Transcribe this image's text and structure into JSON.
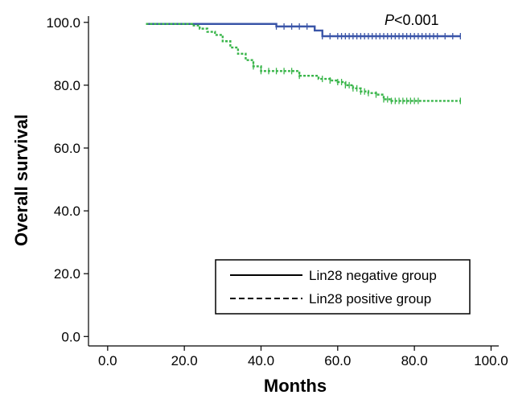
{
  "chart_data": {
    "type": "line",
    "xlabel": "Months",
    "ylabel": "Overall survival",
    "xlim": [
      -5,
      102
    ],
    "ylim": [
      -3,
      102
    ],
    "x_ticks": [
      "0.0",
      "20.0",
      "40.0",
      "60.0",
      "80.0",
      "100.0"
    ],
    "y_ticks": [
      "0.0",
      "20.0",
      "40.0",
      "60.0",
      "80.0",
      "100.0"
    ],
    "annotation": {
      "italic": "P",
      "rest": "<0.001"
    },
    "legend_position": "bottom-right",
    "series": [
      {
        "name": "Lin28 negative group",
        "color": "#3a55a8",
        "style": "solid",
        "x": [
          10,
          43,
          44,
          52,
          54,
          56,
          92
        ],
        "y": [
          99.5,
          99.5,
          98.7,
          98.7,
          97.4,
          95.6,
          95.6
        ],
        "censor_x": [
          44,
          46,
          48,
          50,
          52,
          56,
          58,
          60,
          61,
          62,
          63,
          64,
          65,
          66,
          67,
          68,
          69,
          70,
          71,
          72,
          73,
          74,
          75,
          76,
          77,
          78,
          79,
          80,
          81,
          82,
          83,
          84,
          85,
          86,
          88,
          90,
          92
        ]
      },
      {
        "name": "Lin28 positive group",
        "color": "#39b54a",
        "style": "dashed",
        "x": [
          10,
          20,
          22,
          24,
          26,
          28,
          30,
          32,
          34,
          36,
          38,
          40,
          45,
          50,
          55,
          58,
          60,
          62,
          64,
          66,
          68,
          70,
          72,
          74,
          78,
          92
        ],
        "y": [
          99.5,
          99.5,
          99,
          98,
          97,
          96,
          94,
          92,
          90,
          88,
          86,
          84.5,
          84.5,
          83,
          82,
          81.5,
          81,
          80,
          79,
          78,
          77.5,
          77,
          75.5,
          75,
          75,
          75
        ],
        "censor_x": [
          38,
          40,
          42,
          44,
          46,
          48,
          50,
          56,
          58,
          60,
          61,
          62,
          63,
          64,
          65,
          66,
          67,
          68,
          70,
          72,
          73,
          74,
          75,
          76,
          77,
          78,
          79,
          80,
          81,
          92
        ]
      }
    ]
  }
}
